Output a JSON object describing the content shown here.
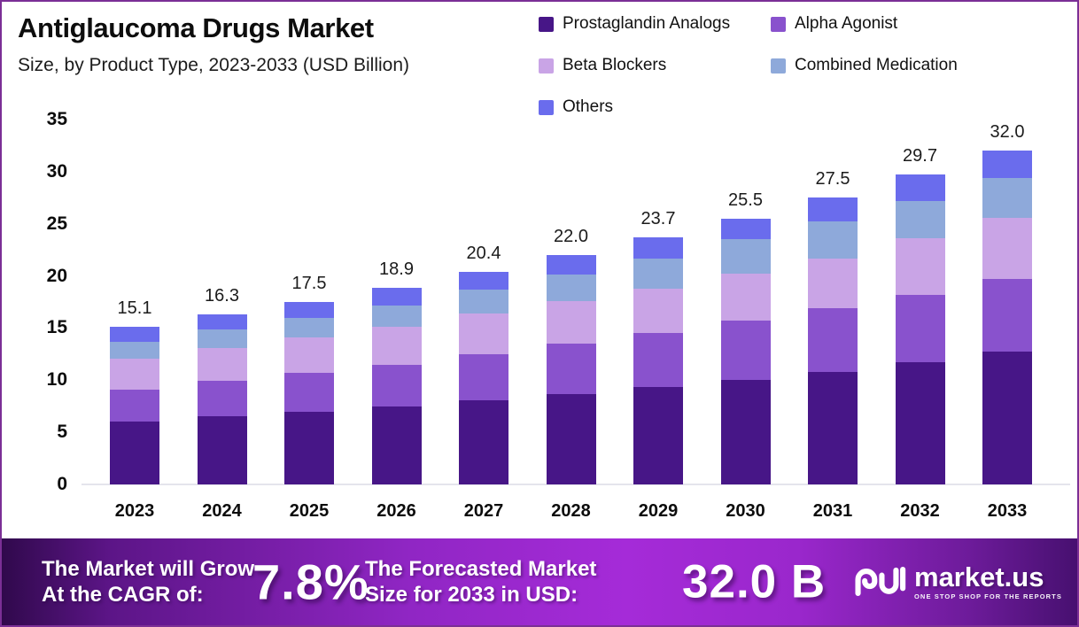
{
  "header": {
    "title": "Antiglaucoma Drugs Market",
    "subtitle": "Size, by Product Type, 2023-2033 (USD Billion)"
  },
  "chart_data": {
    "type": "bar",
    "stacked": true,
    "title": "Antiglaucoma Drugs Market Size, by Product Type, 2023-2033 (USD Billion)",
    "unit": "USD Billion",
    "categories": [
      "2023",
      "2024",
      "2025",
      "2026",
      "2027",
      "2028",
      "2029",
      "2030",
      "2031",
      "2032",
      "2033"
    ],
    "series": [
      {
        "name": "Prostaglandin Analogs",
        "color": "#471687",
        "values": [
          6.0,
          6.5,
          7.0,
          7.5,
          8.1,
          8.7,
          9.3,
          10.0,
          10.8,
          11.7,
          12.7
        ]
      },
      {
        "name": "Alpha Agonist",
        "color": "#8952cd",
        "values": [
          3.1,
          3.4,
          3.7,
          4.0,
          4.4,
          4.8,
          5.2,
          5.7,
          6.1,
          6.5,
          7.0
        ]
      },
      {
        "name": "Beta Blockers",
        "color": "#c9a4e6",
        "values": [
          3.0,
          3.2,
          3.4,
          3.6,
          3.9,
          4.1,
          4.3,
          4.5,
          4.8,
          5.4,
          5.9
        ]
      },
      {
        "name": "Combined Medication",
        "color": "#8ea9da",
        "values": [
          1.6,
          1.8,
          1.9,
          2.1,
          2.3,
          2.5,
          2.9,
          3.3,
          3.5,
          3.6,
          3.8
        ]
      },
      {
        "name": "Others",
        "color": "#6a6ced",
        "values": [
          1.4,
          1.4,
          1.5,
          1.7,
          1.7,
          1.9,
          2.0,
          2.0,
          2.3,
          2.5,
          2.6
        ]
      }
    ],
    "totals": [
      "15.1",
      "16.3",
      "17.5",
      "18.9",
      "20.4",
      "22.0",
      "23.7",
      "25.5",
      "27.5",
      "29.7",
      "32.0"
    ],
    "ylim": [
      0,
      35
    ],
    "yticks": [
      0,
      5,
      10,
      15,
      20,
      25,
      30,
      35
    ],
    "grid": false,
    "legend_position": "top-right"
  },
  "banner": {
    "cagr_line1": "The Market will Grow",
    "cagr_line2": "At the CAGR of:",
    "cagr_value": "7.8%",
    "forecast_line1": "The Forecasted Market",
    "forecast_line2": "Size for 2033 in USD:",
    "forecast_value": "32.0 B",
    "brand_name": "market.us",
    "brand_tagline": "ONE STOP SHOP FOR THE REPORTS",
    "logo_icon": "market-us-swirl-logo"
  },
  "colors": {
    "border": "#7b2f96",
    "banner_gradient_start": "#30094c",
    "banner_gradient_mid": "#a52bd8",
    "banner_gradient_end": "#471070",
    "baseline": "#e4e4ec",
    "text": "#111111"
  }
}
